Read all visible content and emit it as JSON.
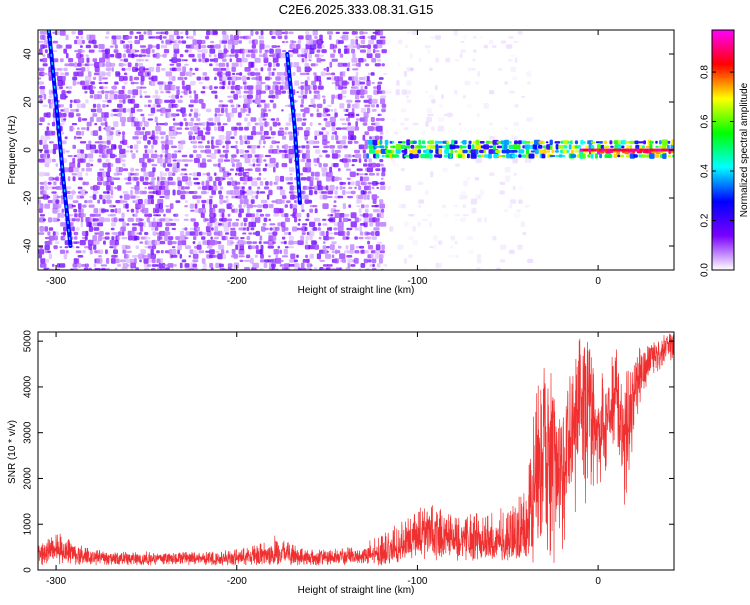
{
  "chart_data": [
    {
      "type": "heatmap",
      "title": "C2E6.2025.333.08.31.G15",
      "xlabel": "Height of straight line (km)",
      "ylabel": "Frequency (Hz)",
      "xlim": [
        -310,
        42
      ],
      "ylim": [
        -50,
        50
      ],
      "xticks": [
        -300,
        -200,
        -100,
        0
      ],
      "xtick_labels": [
        "-300",
        "-200",
        "-100",
        "0"
      ],
      "yticks": [
        -40,
        -20,
        0,
        20,
        40
      ],
      "ytick_labels": [
        "-40",
        "-20",
        "0",
        "20",
        "40"
      ],
      "colorbar": {
        "label": "Normalized spectral amplitude",
        "range": [
          0,
          0.97
        ],
        "ticks": [
          0,
          0.2,
          0.4,
          0.6,
          0.8
        ],
        "tick_labels": [
          "0.0",
          "0.2",
          "0.4",
          "0.6",
          "0.8"
        ],
        "colormap": [
          "#ffffff",
          "#7a00ff",
          "#0000ff",
          "#00ffff",
          "#00ff00",
          "#ffff00",
          "#ff0000",
          "#ff00ff"
        ]
      },
      "regions": [
        {
          "name": "broadband noise",
          "x": [
            -310,
            -120
          ],
          "freq": [
            -50,
            50
          ],
          "amplitude": 0.1
        },
        {
          "name": "faint noise",
          "x": [
            -120,
            -40
          ],
          "freq": [
            -50,
            50
          ],
          "amplitude": 0.03
        },
        {
          "name": "signal band",
          "x": [
            -130,
            42
          ],
          "freq": [
            -4,
            4
          ],
          "amplitude": 0.45
        },
        {
          "name": "strong carrier",
          "x": [
            -10,
            42
          ],
          "freq": [
            -1,
            1
          ],
          "amplitude": 0.95
        }
      ],
      "streaks": [
        {
          "name": "streak A",
          "points": [
            [
              -304,
              50
            ],
            [
              -300,
              20
            ],
            [
              -296,
              -12
            ],
            [
              -292,
              -40
            ]
          ]
        },
        {
          "name": "streak B",
          "points": [
            [
              -172,
              40
            ],
            [
              -168,
              10
            ],
            [
              -165,
              -22
            ]
          ]
        }
      ]
    },
    {
      "type": "line",
      "xlabel": "Height of straight line (km)",
      "ylabel": "SNR (10 * v/v)",
      "xlim": [
        -310,
        42
      ],
      "ylim": [
        0,
        5200
      ],
      "xticks": [
        -300,
        -200,
        -100,
        0
      ],
      "xtick_labels": [
        "-300",
        "-200",
        "-100",
        "0"
      ],
      "yticks": [
        0,
        1000,
        2000,
        3000,
        4000,
        5000
      ],
      "ytick_labels": [
        "0",
        "1000",
        "2000",
        "3000",
        "4000",
        "5000"
      ],
      "color": "#f03030",
      "x": [
        -310,
        -300,
        -290,
        -280,
        -270,
        -260,
        -250,
        -240,
        -230,
        -220,
        -210,
        -200,
        -190,
        -180,
        -175,
        -170,
        -160,
        -150,
        -140,
        -130,
        -120,
        -110,
        -100,
        -90,
        -80,
        -70,
        -60,
        -50,
        -45,
        -40,
        -35,
        -30,
        -25,
        -20,
        -15,
        -10,
        -5,
        0,
        5,
        10,
        15,
        20,
        25,
        30,
        35,
        40,
        42
      ],
      "y": [
        350,
        480,
        330,
        280,
        270,
        260,
        250,
        250,
        250,
        250,
        255,
        260,
        280,
        320,
        450,
        300,
        270,
        270,
        280,
        300,
        380,
        500,
        800,
        720,
        650,
        600,
        580,
        600,
        650,
        800,
        1500,
        3000,
        2500,
        2200,
        2800,
        3500,
        3800,
        3000,
        3200,
        4200,
        2500,
        4000,
        4400,
        4700,
        4800,
        4950,
        5000
      ],
      "envelope_min": [
        100,
        120,
        100,
        100,
        100,
        100,
        100,
        100,
        100,
        100,
        100,
        100,
        100,
        100,
        120,
        100,
        100,
        100,
        100,
        100,
        100,
        150,
        250,
        200,
        200,
        200,
        200,
        200,
        250,
        300,
        100,
        600,
        100,
        300,
        900,
        1400,
        1300,
        1800,
        2200,
        3000,
        1100,
        3000,
        3800,
        4200,
        4400,
        4500,
        4600
      ],
      "envelope_max": [
        650,
        850,
        600,
        450,
        420,
        400,
        420,
        400,
        400,
        400,
        420,
        460,
        550,
        780,
        750,
        600,
        450,
        470,
        500,
        600,
        800,
        1050,
        1500,
        1400,
        1350,
        1250,
        1300,
        1400,
        1500,
        2000,
        3800,
        4600,
        4500,
        3800,
        4300,
        5100,
        5150,
        4200,
        4600,
        5150,
        4300,
        4800,
        5000,
        5100,
        5150,
        5200,
        5200
      ]
    }
  ]
}
